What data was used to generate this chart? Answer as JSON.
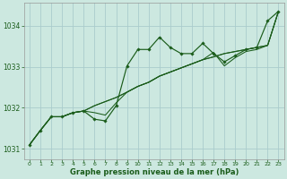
{
  "background_color": "#cce8e0",
  "grid_color": "#aacccc",
  "line_color": "#1a5c1a",
  "marker_color": "#1a5c1a",
  "xlabel": "Graphe pression niveau de la mer (hPa)",
  "xlim": [
    -0.5,
    23.5
  ],
  "ylim": [
    1030.75,
    1034.55
  ],
  "yticks": [
    1031,
    1032,
    1033,
    1034
  ],
  "xticks": [
    0,
    1,
    2,
    3,
    4,
    5,
    6,
    7,
    8,
    9,
    10,
    11,
    12,
    13,
    14,
    15,
    16,
    17,
    18,
    19,
    20,
    21,
    22,
    23
  ],
  "series_main": [
    1031.1,
    1031.45,
    1031.78,
    1031.78,
    1031.88,
    1031.92,
    1031.72,
    1031.68,
    1032.05,
    1033.02,
    1033.42,
    1033.42,
    1033.72,
    1033.47,
    1033.32,
    1033.32,
    1033.57,
    1033.32,
    1033.12,
    1033.27,
    1033.42,
    1033.47,
    1034.12,
    1034.35
  ],
  "series_line1": [
    1031.1,
    1031.45,
    1031.78,
    1031.78,
    1031.88,
    1031.92,
    1032.05,
    1032.15,
    1032.25,
    1032.38,
    1032.52,
    1032.62,
    1032.77,
    1032.87,
    1032.97,
    1033.07,
    1033.17,
    1033.24,
    1033.32,
    1033.37,
    1033.42,
    1033.47,
    1033.52,
    1034.35
  ],
  "series_line2": [
    1031.1,
    1031.45,
    1031.78,
    1031.78,
    1031.88,
    1031.92,
    1032.05,
    1032.15,
    1032.25,
    1032.38,
    1032.52,
    1032.62,
    1032.77,
    1032.87,
    1032.97,
    1033.07,
    1033.17,
    1033.35,
    1033.02,
    1033.22,
    1033.37,
    1033.42,
    1033.52,
    1034.35
  ],
  "series_line3": [
    1031.1,
    1031.45,
    1031.78,
    1031.78,
    1031.88,
    1031.92,
    1031.88,
    1031.82,
    1032.12,
    1032.38,
    1032.52,
    1032.62,
    1032.77,
    1032.87,
    1032.97,
    1033.07,
    1033.17,
    1033.24,
    1033.32,
    1033.37,
    1033.42,
    1033.47,
    1033.52,
    1034.35
  ]
}
